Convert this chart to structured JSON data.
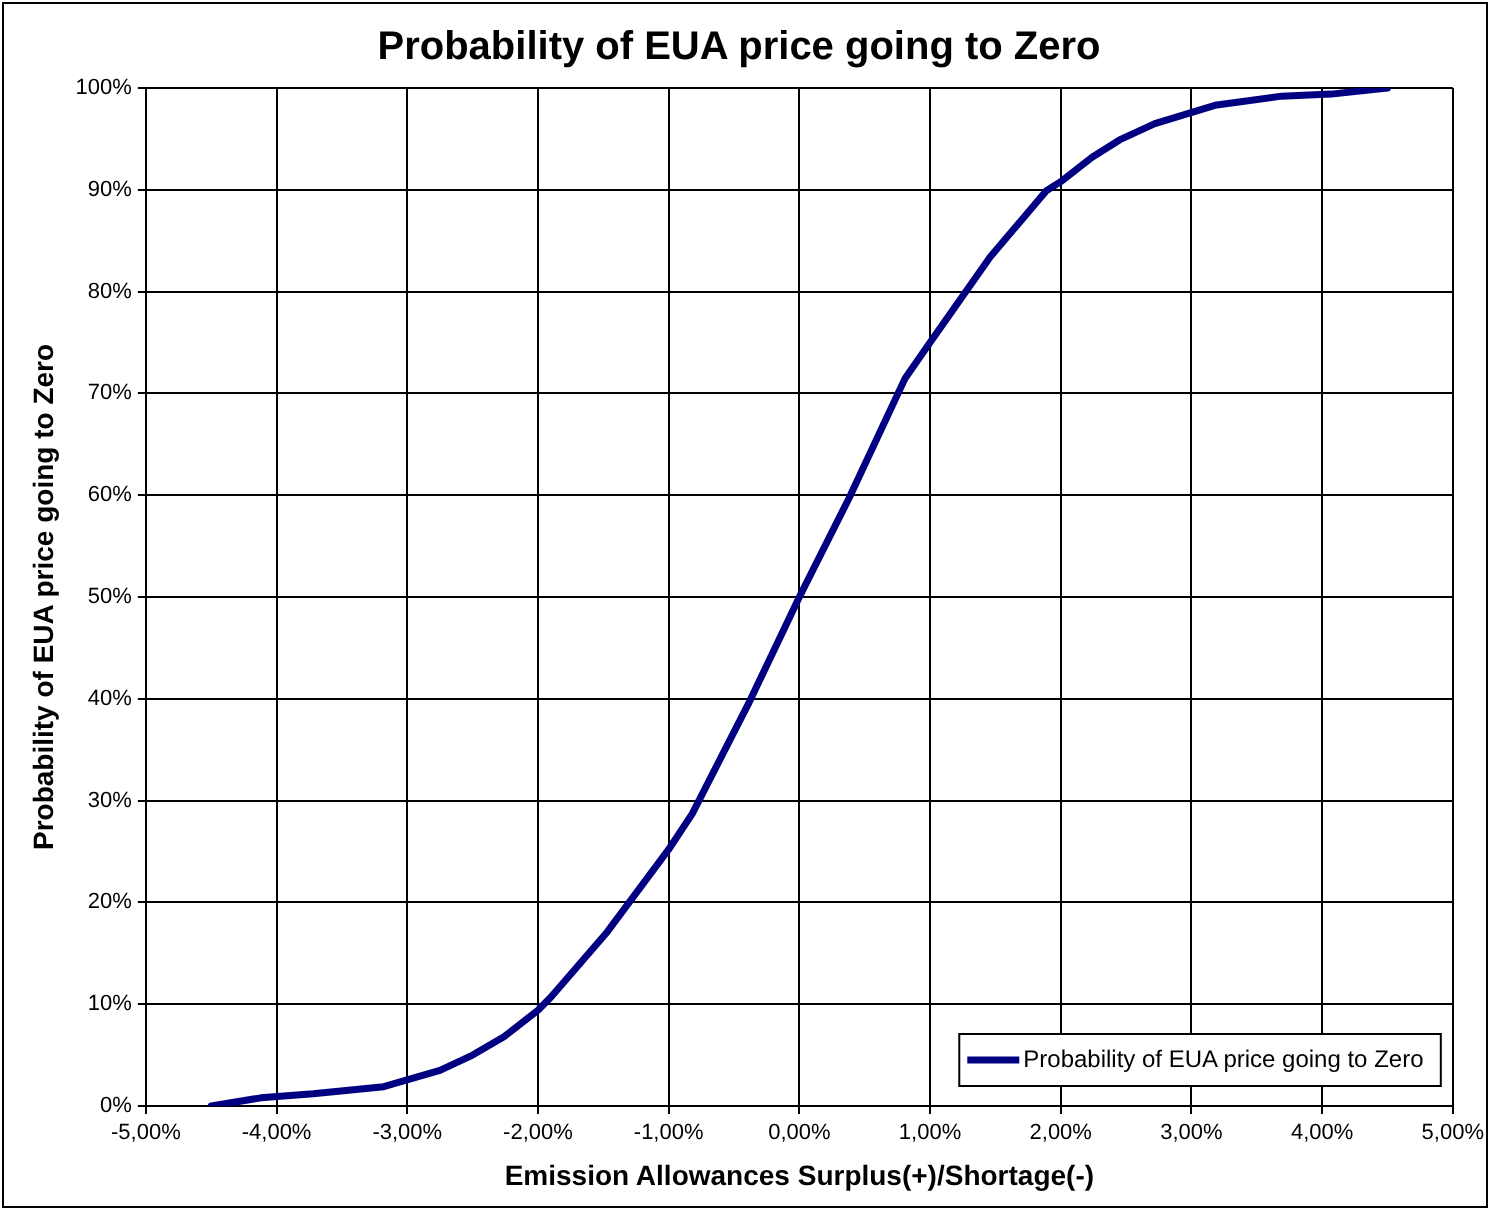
{
  "chart_data": {
    "type": "line",
    "title": "Probability of EUA price going to Zero",
    "xlabel": "Emission Allowances Surplus(+)/Shortage(-)",
    "ylabel": "Probability of EUA price going to Zero",
    "series": [
      {
        "name": "Probability of EUA price going to Zero",
        "color": "#000080",
        "x": [
          -4.5,
          -4.12,
          -3.72,
          -3.18,
          -2.75,
          -2.5,
          -2.26,
          -2.0,
          -1.9,
          -1.47,
          -1.0,
          -0.82,
          -0.39,
          0,
          0.38,
          0.81,
          1.0,
          1.46,
          1.89,
          2.0,
          2.24,
          2.45,
          2.72,
          3.18,
          3.69,
          4.07,
          4.5
        ],
        "values": [
          0,
          0.8,
          1.2,
          1.9,
          3.5,
          5,
          6.8,
          9.4,
          10.7,
          17.1,
          25.2,
          28.7,
          39.5,
          50,
          59.7,
          71.5,
          75,
          83.4,
          89.9,
          90.8,
          93.2,
          94.9,
          96.5,
          98.3,
          99.2,
          99.4,
          100
        ]
      }
    ],
    "xlim": [
      -5,
      5
    ],
    "xticks": [
      {
        "value": -5,
        "label": "-5,00%"
      },
      {
        "value": -4,
        "label": "-4,00%"
      },
      {
        "value": -3,
        "label": "-3,00%"
      },
      {
        "value": -2,
        "label": "-2,00%"
      },
      {
        "value": -1,
        "label": "-1,00%"
      },
      {
        "value": 0,
        "label": "0,00%"
      },
      {
        "value": 1,
        "label": "1,00%"
      },
      {
        "value": 2,
        "label": "2,00%"
      },
      {
        "value": 3,
        "label": "3,00%"
      },
      {
        "value": 4,
        "label": "4,00%"
      },
      {
        "value": 5,
        "label": "5,00%"
      }
    ],
    "ylim": [
      0,
      100
    ],
    "yticks": [
      {
        "value": 0,
        "label": "0%"
      },
      {
        "value": 10,
        "label": "10%"
      },
      {
        "value": 20,
        "label": "20%"
      },
      {
        "value": 30,
        "label": "30%"
      },
      {
        "value": 40,
        "label": "40%"
      },
      {
        "value": 50,
        "label": "50%"
      },
      {
        "value": 60,
        "label": "60%"
      },
      {
        "value": 70,
        "label": "70%"
      },
      {
        "value": 80,
        "label": "80%"
      },
      {
        "value": 90,
        "label": "90%"
      },
      {
        "value": 100,
        "label": "100%"
      }
    ],
    "grid": true,
    "legend": "bottom right",
    "marker": "none",
    "line_style": "solid"
  }
}
